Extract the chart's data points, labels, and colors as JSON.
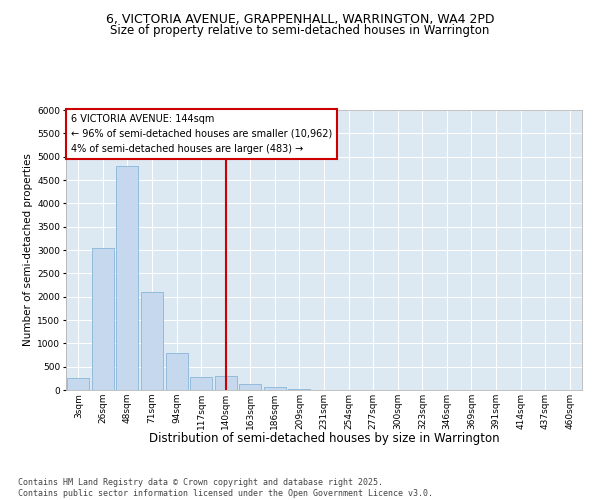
{
  "title_line1": "6, VICTORIA AVENUE, GRAPPENHALL, WARRINGTON, WA4 2PD",
  "title_line2": "Size of property relative to semi-detached houses in Warrington",
  "xlabel": "Distribution of semi-detached houses by size in Warrington",
  "ylabel": "Number of semi-detached properties",
  "categories": [
    "3sqm",
    "26sqm",
    "48sqm",
    "71sqm",
    "94sqm",
    "117sqm",
    "140sqm",
    "163sqm",
    "186sqm",
    "209sqm",
    "231sqm",
    "254sqm",
    "277sqm",
    "300sqm",
    "323sqm",
    "346sqm",
    "369sqm",
    "391sqm",
    "414sqm",
    "437sqm",
    "460sqm"
  ],
  "values": [
    260,
    3050,
    4800,
    2100,
    800,
    275,
    300,
    125,
    65,
    30,
    10,
    5,
    3,
    0,
    0,
    0,
    0,
    0,
    0,
    0,
    0
  ],
  "bar_color": "#c5d8ee",
  "bar_edge_color": "#7aadd4",
  "highlight_bar_index": 6,
  "highlight_line_color": "#cc0000",
  "annotation_text": "6 VICTORIA AVENUE: 144sqm\n← 96% of semi-detached houses are smaller (10,962)\n4% of semi-detached houses are larger (483) →",
  "annotation_box_edgecolor": "#cc0000",
  "ylim": [
    0,
    6000
  ],
  "yticks": [
    0,
    500,
    1000,
    1500,
    2000,
    2500,
    3000,
    3500,
    4000,
    4500,
    5000,
    5500,
    6000
  ],
  "plot_bg": "#dce8f2",
  "grid_color": "#ffffff",
  "footer_text": "Contains HM Land Registry data © Crown copyright and database right 2025.\nContains public sector information licensed under the Open Government Licence v3.0.",
  "title_fontsize": 9,
  "subtitle_fontsize": 8.5,
  "ylabel_fontsize": 7.5,
  "xlabel_fontsize": 8.5,
  "tick_fontsize": 6.5,
  "annotation_fontsize": 7,
  "footer_fontsize": 6
}
